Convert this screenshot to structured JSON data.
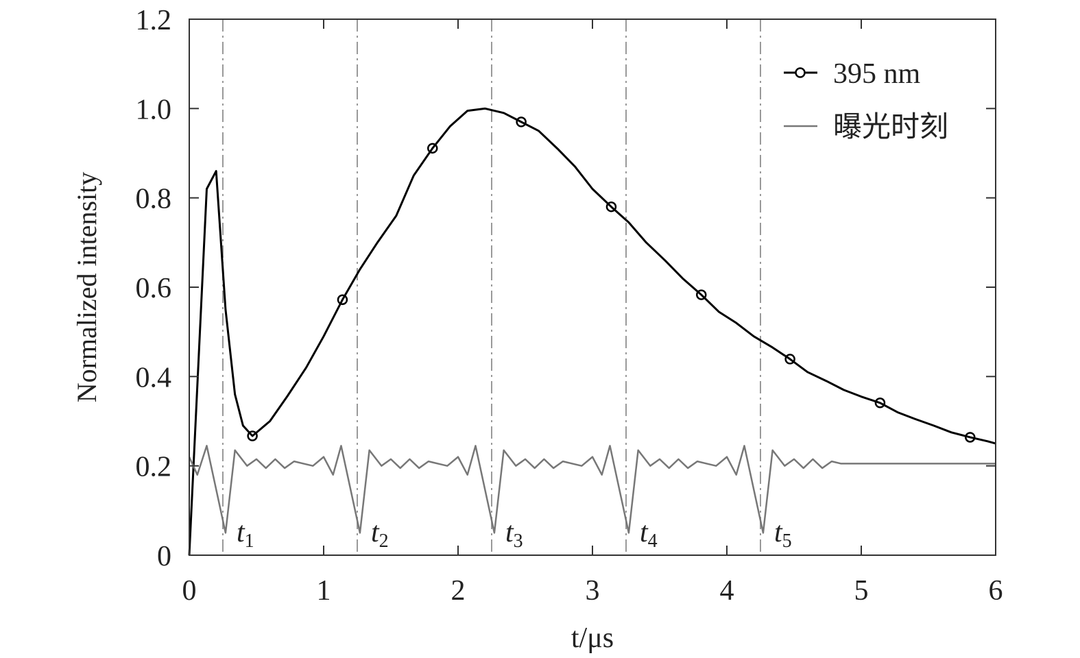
{
  "chart_data": {
    "type": "line",
    "xlabel": "t/μs",
    "ylabel": "Normalized intensity",
    "xlim": [
      0,
      6
    ],
    "ylim": [
      0,
      1.2
    ],
    "xticks": [
      0,
      1,
      2,
      3,
      4,
      5,
      6
    ],
    "yticks": [
      0,
      0.2,
      0.4,
      0.6,
      0.8,
      {
        "value": 1,
        "label": "1.0"
      },
      1.2
    ],
    "legend": "upper right",
    "vlines": [
      0.25,
      1.25,
      2.25,
      3.25,
      4.25
    ],
    "annotations": [
      {
        "text": "t",
        "sub": "1"
      },
      {
        "text": "t",
        "sub": "2"
      },
      {
        "text": "t",
        "sub": "3"
      },
      {
        "text": "t",
        "sub": "4"
      },
      {
        "text": "t",
        "sub": "5"
      }
    ],
    "series": [
      {
        "name": "395 nm",
        "color": "#000000",
        "marker": "o",
        "markevery": [
          6,
          5
        ],
        "x": [
          0,
          0.13,
          0.2,
          0.27,
          0.34,
          0.4,
          0.47,
          0.6,
          0.73,
          0.87,
          1.0,
          1.14,
          1.27,
          1.4,
          1.54,
          1.67,
          1.81,
          1.94,
          2.07,
          2.2,
          2.34,
          2.47,
          2.6,
          2.74,
          2.87,
          3.0,
          3.14,
          3.27,
          3.4,
          3.54,
          3.67,
          3.81,
          3.94,
          4.07,
          4.2,
          4.34,
          4.47,
          4.6,
          4.74,
          4.87,
          5.0,
          5.14,
          5.27,
          5.4,
          5.54,
          5.67,
          5.81,
          5.94,
          6.0
        ],
        "values": [
          0,
          0.82,
          0.86,
          0.55,
          0.36,
          0.29,
          0.267,
          0.3,
          0.356,
          0.42,
          0.49,
          0.572,
          0.64,
          0.7,
          0.76,
          0.85,
          0.911,
          0.96,
          0.995,
          1.0,
          0.99,
          0.97,
          0.95,
          0.91,
          0.87,
          0.82,
          0.78,
          0.745,
          0.7,
          0.66,
          0.62,
          0.583,
          0.545,
          0.52,
          0.49,
          0.465,
          0.439,
          0.41,
          0.39,
          0.37,
          0.355,
          0.341,
          0.32,
          0.305,
          0.29,
          0.275,
          0.264,
          0.255,
          0.25
        ]
      },
      {
        "name": "曝光时刻",
        "color": "#777777",
        "x": [
          0,
          0.06,
          0.13,
          0.27,
          0.34,
          0.43,
          0.5,
          0.57,
          0.64,
          0.71,
          0.78,
          0.85,
          0.92,
          1.0,
          1.07,
          1.13,
          1.27,
          1.34,
          1.43,
          1.5,
          1.57,
          1.64,
          1.71,
          1.78,
          1.85,
          1.92,
          2.0,
          2.07,
          2.13,
          2.27,
          2.34,
          2.43,
          2.5,
          2.57,
          2.64,
          2.71,
          2.78,
          2.85,
          2.92,
          3.0,
          3.07,
          3.13,
          3.27,
          3.34,
          3.43,
          3.5,
          3.57,
          3.64,
          3.71,
          3.78,
          3.85,
          3.92,
          4.0,
          4.07,
          4.13,
          4.27,
          4.34,
          4.43,
          4.5,
          4.57,
          4.64,
          4.71,
          4.78,
          4.85,
          5.0,
          6.0
        ],
        "values": [
          0.22,
          0.18,
          0.245,
          0.05,
          0.235,
          0.2,
          0.215,
          0.195,
          0.215,
          0.195,
          0.21,
          0.205,
          0.2,
          0.22,
          0.18,
          0.245,
          0.05,
          0.235,
          0.2,
          0.215,
          0.195,
          0.215,
          0.195,
          0.21,
          0.205,
          0.2,
          0.22,
          0.18,
          0.245,
          0.05,
          0.235,
          0.2,
          0.215,
          0.195,
          0.215,
          0.195,
          0.21,
          0.205,
          0.2,
          0.22,
          0.18,
          0.245,
          0.05,
          0.235,
          0.2,
          0.215,
          0.195,
          0.215,
          0.195,
          0.21,
          0.205,
          0.2,
          0.22,
          0.18,
          0.245,
          0.05,
          0.235,
          0.2,
          0.215,
          0.195,
          0.215,
          0.195,
          0.21,
          0.205,
          0.205,
          0.205
        ]
      }
    ]
  }
}
